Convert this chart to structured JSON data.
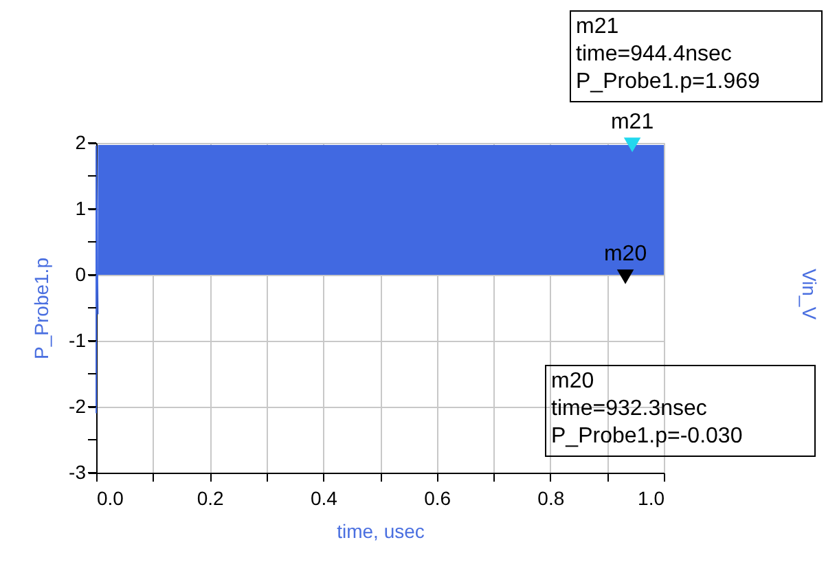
{
  "chart_data": {
    "type": "area",
    "xlabel": "time, usec",
    "ylabel": "P_Probe1.p",
    "xlim": [
      0.0,
      1.0
    ],
    "xticks": [
      {
        "value": 0.0,
        "label": "0.0"
      },
      {
        "value": 0.1,
        "label": null
      },
      {
        "value": 0.2,
        "label": "0.2"
      },
      {
        "value": 0.3,
        "label": null
      },
      {
        "value": 0.4,
        "label": "0.4"
      },
      {
        "value": 0.5,
        "label": null
      },
      {
        "value": 0.6,
        "label": "0.6"
      },
      {
        "value": 0.7,
        "label": null
      },
      {
        "value": 0.8,
        "label": "0.8"
      },
      {
        "value": 0.9,
        "label": null
      },
      {
        "value": 1.0,
        "label": "1.0"
      }
    ],
    "ylim": [
      -3,
      2
    ],
    "yticks": [
      -3,
      {
        "value": -2.5,
        "label": null
      },
      -2,
      {
        "value": -1.5,
        "label": null
      },
      -1,
      {
        "value": -0.5,
        "label": null
      },
      0,
      {
        "value": 0.5,
        "label": null
      },
      1,
      {
        "value": 1.5,
        "label": null
      },
      2
    ],
    "grid": true,
    "series": [
      {
        "color": "#4169e1",
        "x": [
          0.003,
          0.2,
          0.4,
          0.6,
          0.8,
          1.0
        ],
        "values": [
          1.97,
          1.97,
          1.97,
          1.97,
          1.97,
          1.97
        ]
      },
      {
        "type": "line",
        "color": "#4169e1",
        "x": [
          0.0,
          0.0,
          0.003
        ],
        "values": [
          -2.1,
          1.95,
          -0.6
        ]
      },
      {
        "type": "scatter",
        "name": "m21",
        "color": "#22d8ee",
        "marker": "triangle",
        "x": [
          0.9444
        ],
        "values": [
          1.969
        ]
      },
      {
        "type": "scatter",
        "name": "m20",
        "color": "#000000",
        "marker": "triangle",
        "x": [
          0.9323
        ],
        "values": [
          -0.03
        ]
      }
    ],
    "annotations": [
      "m21\ntime=944.4nsec\nP_Probe1.p=1.969",
      "m20\ntime=932.3nsec\nP_Probe1.p=-0.030",
      "Vin_V"
    ]
  }
}
